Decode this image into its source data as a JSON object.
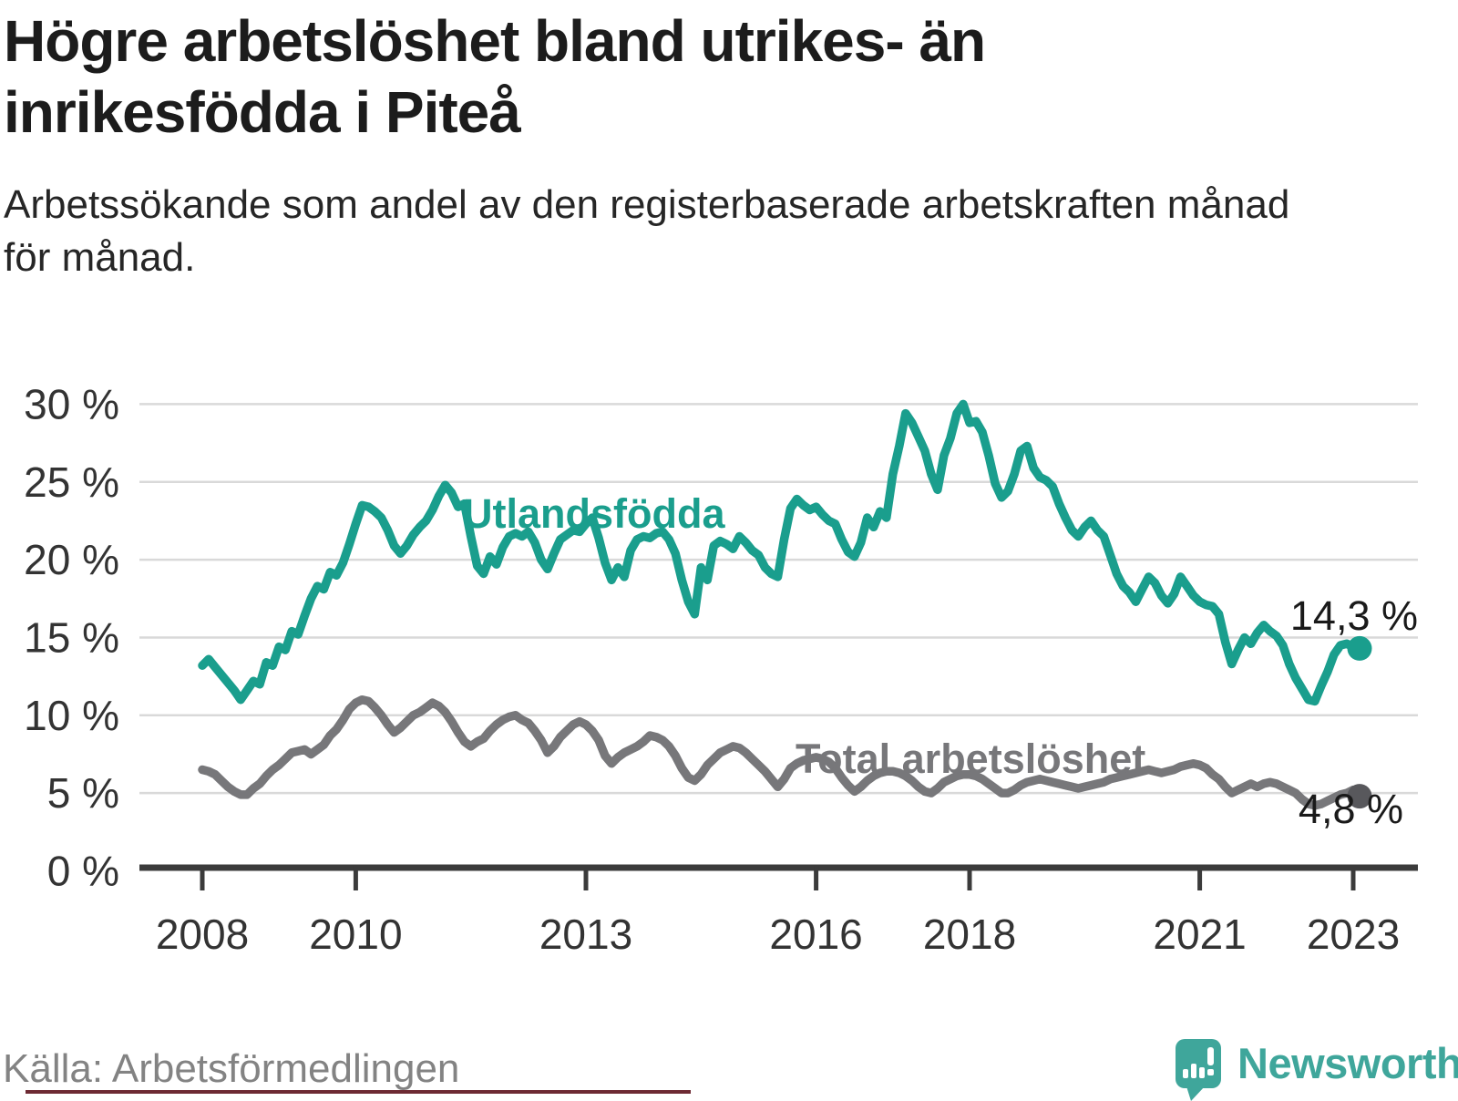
{
  "header": {
    "title_lines": [
      "Högre arbetslöshet bland utrikes- än",
      "inrikesfödda i Piteå"
    ],
    "subtitle_lines": [
      "Arbetssökande som andel av den registerbaserade arbetskraften månad",
      "för månad."
    ]
  },
  "footer": {
    "source": "Källa: Arbetsförmedlingen",
    "brand_name": "Newsworthy"
  },
  "colors": {
    "series1": "#1a9e8d",
    "series1_dot": "#1a9e8d",
    "series2": "#77777a",
    "series2_dot": "#58585c",
    "grid": "#d9d9d9",
    "axis": "#3b3b3b",
    "tick_text": "#333333",
    "title": "#1c1c1c",
    "subtitle": "#262626",
    "source": "#838383",
    "brand_teal": "#3fa69b",
    "accent_bar": "#6d2a33",
    "value_label": "#1a1a1a"
  },
  "chart_data": {
    "type": "line",
    "title": "Högre arbetslöshet bland utrikes- än inrikesfödda i Piteå",
    "subtitle": "Arbetssökande som andel av den registerbaserade arbetskraften månad för månad.",
    "xlabel": "",
    "ylabel": "",
    "ylim": [
      0,
      30
    ],
    "grid": true,
    "x_unit": "month",
    "x_start": "2008-01",
    "x_end": "2023-02",
    "xticks": [
      2008,
      2010,
      2013,
      2016,
      2018,
      2021,
      2023
    ],
    "yticks": [
      "0 %",
      "5 %",
      "10 %",
      "15 %",
      "20 %",
      "25 %",
      "30 %"
    ],
    "series": [
      {
        "name": "Utlandsfödda",
        "color": "#1a9e8d",
        "dot_color": "#1a9e8d",
        "end_label": "14,3 %",
        "values": [
          13.2,
          13.6,
          13.1,
          12.6,
          12.1,
          11.6,
          11.0,
          11.6,
          12.2,
          12.0,
          13.4,
          13.2,
          14.4,
          14.2,
          15.4,
          15.2,
          16.4,
          17.5,
          18.3,
          18.1,
          19.2,
          19.0,
          19.8,
          21.0,
          22.3,
          23.5,
          23.4,
          23.1,
          22.7,
          21.9,
          20.9,
          20.4,
          20.9,
          21.6,
          22.1,
          22.5,
          23.2,
          24.1,
          24.8,
          24.3,
          23.4,
          23.6,
          21.5,
          19.6,
          19.1,
          20.2,
          19.7,
          20.8,
          21.5,
          21.7,
          21.5,
          21.8,
          21.1,
          20.0,
          19.4,
          20.4,
          21.3,
          21.6,
          21.9,
          21.8,
          22.3,
          22.7,
          21.4,
          19.8,
          18.7,
          19.5,
          18.9,
          20.6,
          21.3,
          21.5,
          21.4,
          21.7,
          21.8,
          21.3,
          20.4,
          18.7,
          17.3,
          16.5,
          19.5,
          18.7,
          20.9,
          21.2,
          21.0,
          20.7,
          21.5,
          21.1,
          20.6,
          20.3,
          19.5,
          19.1,
          18.9,
          21.3,
          23.3,
          23.9,
          23.5,
          23.2,
          23.4,
          22.9,
          22.5,
          22.3,
          21.3,
          20.5,
          20.2,
          21.1,
          22.7,
          22.1,
          23.1,
          22.7,
          25.5,
          27.3,
          29.4,
          28.8,
          27.9,
          27.0,
          25.5,
          24.5,
          26.7,
          27.8,
          29.4,
          30.0,
          28.8,
          28.9,
          28.2,
          26.7,
          24.9,
          24.0,
          24.4,
          25.5,
          27.0,
          27.3,
          25.9,
          25.3,
          25.1,
          24.7,
          23.6,
          22.7,
          21.9,
          21.5,
          22.1,
          22.5,
          21.9,
          21.5,
          20.3,
          19.1,
          18.3,
          17.9,
          17.3,
          18.1,
          18.9,
          18.5,
          17.7,
          17.2,
          17.8,
          18.9,
          18.3,
          17.7,
          17.3,
          17.1,
          17.0,
          16.5,
          14.7,
          13.3,
          14.2,
          15.0,
          14.6,
          15.3,
          15.8,
          15.4,
          15.1,
          14.5,
          13.3,
          12.4,
          11.7,
          11.0,
          10.9,
          11.9,
          12.8,
          13.9,
          14.5,
          14.6,
          14.4,
          14.3
        ]
      },
      {
        "name": "Total arbetslöshet",
        "color": "#77777a",
        "dot_color": "#58585c",
        "end_label": "4,8 %",
        "values": [
          6.5,
          6.4,
          6.2,
          5.8,
          5.4,
          5.1,
          4.9,
          4.9,
          5.3,
          5.6,
          6.1,
          6.5,
          6.8,
          7.2,
          7.6,
          7.7,
          7.8,
          7.5,
          7.8,
          8.1,
          8.7,
          9.1,
          9.7,
          10.4,
          10.8,
          11.0,
          10.9,
          10.5,
          10.0,
          9.4,
          8.9,
          9.2,
          9.6,
          10.0,
          10.2,
          10.5,
          10.8,
          10.6,
          10.2,
          9.6,
          8.9,
          8.3,
          8.0,
          8.3,
          8.5,
          9.0,
          9.4,
          9.7,
          9.9,
          10.0,
          9.7,
          9.5,
          9.0,
          8.4,
          7.6,
          8.0,
          8.6,
          9.0,
          9.4,
          9.6,
          9.4,
          9.0,
          8.4,
          7.4,
          6.9,
          7.3,
          7.6,
          7.8,
          8.0,
          8.3,
          8.7,
          8.6,
          8.4,
          8.0,
          7.4,
          6.6,
          6.0,
          5.8,
          6.2,
          6.8,
          7.2,
          7.6,
          7.8,
          8.0,
          7.9,
          7.6,
          7.2,
          6.8,
          6.4,
          5.9,
          5.4,
          5.9,
          6.6,
          6.9,
          7.1,
          7.2,
          7.3,
          7.2,
          7.0,
          6.6,
          6.0,
          5.5,
          5.1,
          5.4,
          5.8,
          6.1,
          6.3,
          6.4,
          6.4,
          6.3,
          6.1,
          5.8,
          5.4,
          5.1,
          5.0,
          5.3,
          5.7,
          5.9,
          6.1,
          6.2,
          6.2,
          6.1,
          5.9,
          5.6,
          5.3,
          5.0,
          5.0,
          5.2,
          5.5,
          5.7,
          5.8,
          5.9,
          5.8,
          5.7,
          5.6,
          5.5,
          5.4,
          5.3,
          5.4,
          5.5,
          5.6,
          5.7,
          5.9,
          6.0,
          6.1,
          6.2,
          6.3,
          6.4,
          6.5,
          6.4,
          6.3,
          6.4,
          6.5,
          6.7,
          6.8,
          6.9,
          6.8,
          6.6,
          6.2,
          5.9,
          5.4,
          5.0,
          5.2,
          5.4,
          5.6,
          5.4,
          5.6,
          5.7,
          5.6,
          5.4,
          5.2,
          5.0,
          4.6,
          4.3,
          4.2,
          4.3,
          4.5,
          4.7,
          4.9,
          5.0,
          5.2,
          4.8
        ]
      }
    ],
    "legend_position": "inline-labels"
  }
}
